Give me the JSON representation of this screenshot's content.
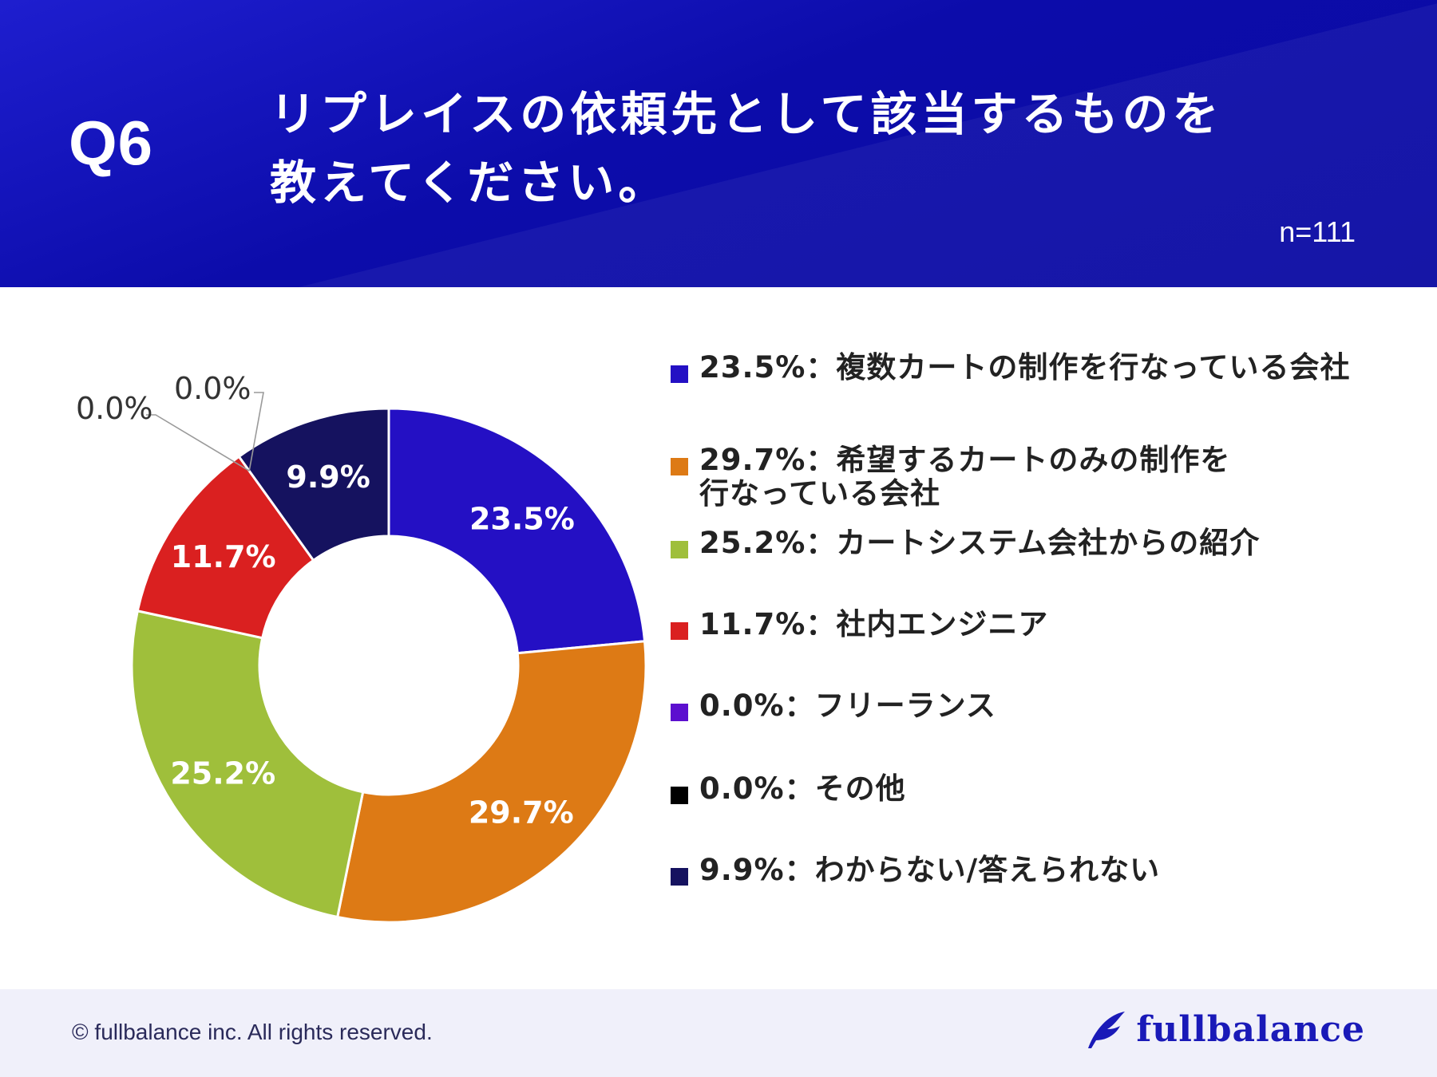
{
  "header": {
    "q_label": "Q6",
    "question_lines": [
      "リプレイスの依頼先として該当するものを",
      "教えてください。"
    ],
    "sample_size": "n=111"
  },
  "chart_data": {
    "type": "pie",
    "variant": "donut",
    "slices": [
      {
        "label": "複数カートの制作を行なっている会社",
        "value": 23.5,
        "value_label": "23.5%",
        "color": "#2410c4"
      },
      {
        "label": "希望するカートのみの制作を\n行なっている会社",
        "value": 29.7,
        "value_label": "29.7%",
        "color": "#dd7a15"
      },
      {
        "label": "カートシステム会社からの紹介",
        "value": 25.2,
        "value_label": "25.2%",
        "color": "#9fbf3b"
      },
      {
        "label": "社内エンジニア",
        "value": 11.7,
        "value_label": "11.7%",
        "color": "#da2020"
      },
      {
        "label": "フリーランス",
        "value": 0.0,
        "value_label": "0.0%",
        "color": "#5c0fcf"
      },
      {
        "label": "その他",
        "value": 0.0,
        "value_label": "0.0%",
        "color": "#000000"
      },
      {
        "label": "わからない/答えられない",
        "value": 9.9,
        "value_label": "9.9%",
        "color": "#15125f"
      }
    ]
  },
  "legend": {
    "items": [
      "23.5%：複数カートの制作を行なっている会社",
      "29.7%：希望するカートのみの制作を\n行なっている会社",
      "25.2%：カートシステム会社からの紹介",
      "11.7%：社内エンジニア",
      "0.0%：フリーランス",
      "0.0%：その他",
      "9.9%：わからない/答えられない"
    ]
  },
  "footer": {
    "copyright": "© fullbalance inc. All rights reserved.",
    "brand": "fullbalance"
  }
}
